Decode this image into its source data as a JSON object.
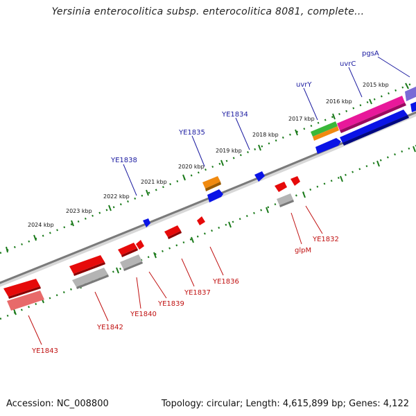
{
  "title": "Yersinia enterocolitica subsp. enterocolitica 8081, complete...",
  "footer": {
    "accession": "Accession: NC_008800",
    "summary": "Topology: circular; Length: 4,615,899 bp; Genes: 4,122"
  },
  "colors": {
    "backbone": "#8a8a8a",
    "tick": "#1a7a1a",
    "forward_label": "#1a1aa0",
    "reverse_label": "#c01010",
    "blue": "#0a14e6",
    "red": "#e60a0a",
    "orange": "#f08a10",
    "green": "#3ab83a",
    "magenta": "#e8189a",
    "purple": "#7a6ad6",
    "grey": "#b4b4b4",
    "pink": "#e86a6a"
  },
  "scale_labels": [
    "2015 kbp",
    "2016 kbp",
    "2017 kbp",
    "2018 kbp",
    "2019 kbp",
    "2020 kbp",
    "2021 kbp",
    "2022 kbp",
    "2023 kbp",
    "2024 kbp"
  ],
  "forward_genes": [
    "pgsA",
    "uvrC",
    "uvrY",
    "YE1834",
    "YE1835",
    "YE1838"
  ],
  "reverse_genes": [
    "YE1832",
    "glpM",
    "YE1836",
    "YE1837",
    "YE1839",
    "YE1840",
    "YE1842",
    "YE1843"
  ]
}
